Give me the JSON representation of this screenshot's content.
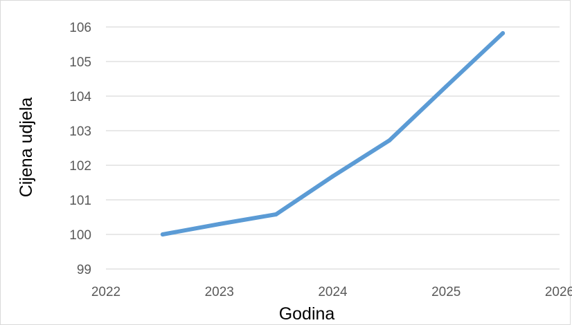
{
  "chart_data": {
    "type": "line",
    "title": "",
    "xlabel": "Godina",
    "ylabel": "Cijena udjela",
    "x_ticks": [
      "2022",
      "2023",
      "2024",
      "2025",
      "2026"
    ],
    "x": [
      2022.5,
      2023,
      2023.5,
      2024,
      2024.5,
      2025,
      2025.5
    ],
    "series": [
      {
        "values": [
          100.0,
          100.3,
          100.58,
          101.68,
          102.72,
          104.28,
          105.82
        ],
        "color": "#5b9bd5"
      }
    ],
    "xlim": [
      2022,
      2026
    ],
    "ylim": [
      99,
      106
    ],
    "y_ticks": [
      99,
      100,
      101,
      102,
      103,
      104,
      105,
      106
    ],
    "grid": "horizontal",
    "legend": "none"
  }
}
